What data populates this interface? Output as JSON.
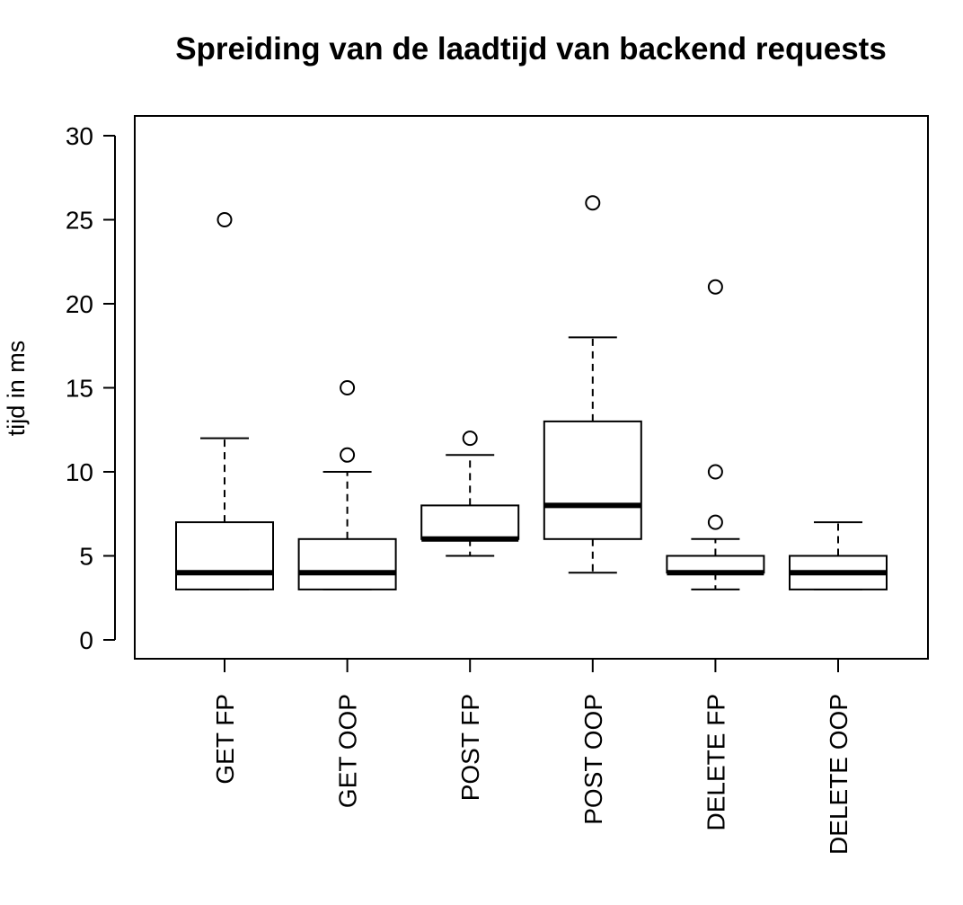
{
  "chart_data": {
    "type": "box",
    "title": "Spreiding van de laadtijd van backend requests",
    "ylabel": "tijd in ms",
    "xlabel": "",
    "ylim": [
      0,
      30
    ],
    "yticks": [
      0,
      5,
      10,
      15,
      20,
      25,
      30
    ],
    "grid": false,
    "categories": [
      "GET FP",
      "GET OOP",
      "POST FP",
      "POST OOP",
      "DELETE FP",
      "DELETE OOP"
    ],
    "boxes": [
      {
        "category": "GET FP",
        "whisker_low": 3,
        "q1": 3,
        "median": 4,
        "q3": 7,
        "whisker_high": 12,
        "outliers": [
          25
        ]
      },
      {
        "category": "GET OOP",
        "whisker_low": 3,
        "q1": 3,
        "median": 4,
        "q3": 6,
        "whisker_high": 10,
        "outliers": [
          11,
          15
        ]
      },
      {
        "category": "POST FP",
        "whisker_low": 5,
        "q1": 6,
        "median": 6,
        "q3": 8,
        "whisker_high": 11,
        "outliers": [
          12
        ]
      },
      {
        "category": "POST OOP",
        "whisker_low": 4,
        "q1": 6,
        "median": 8,
        "q3": 13,
        "whisker_high": 18,
        "outliers": [
          26
        ]
      },
      {
        "category": "DELETE FP",
        "whisker_low": 3,
        "q1": 4,
        "median": 4,
        "q3": 5,
        "whisker_high": 6,
        "outliers": [
          7,
          10,
          21
        ]
      },
      {
        "category": "DELETE OOP",
        "whisker_low": 3,
        "q1": 3,
        "median": 4,
        "q3": 5,
        "whisker_high": 7,
        "outliers": []
      }
    ]
  }
}
